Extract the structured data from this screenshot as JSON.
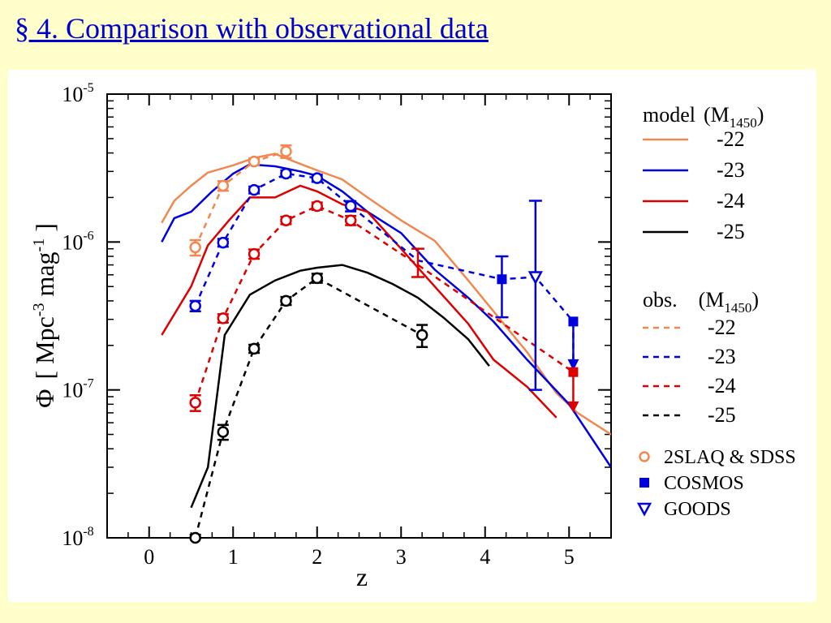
{
  "slide": {
    "title": "§ 4. Comparison with observational data",
    "title_color": "#0000CC",
    "background": "#FFFFCC"
  },
  "chart_data": {
    "type": "line",
    "xlabel": "z",
    "ylabel_parts": {
      "phi": "Φ",
      "open": "[ Mpc",
      "e1": "-3",
      "mid": " mag",
      "e2": "-1",
      "close": " ]"
    },
    "xlim": [
      -0.5,
      5.5
    ],
    "ylim": [
      1e-08,
      1e-05
    ],
    "yscale": "log",
    "xticks": [
      0,
      1,
      2,
      3,
      4,
      5
    ],
    "xtick_labels": [
      "0",
      "1",
      "2",
      "3",
      "4",
      "5"
    ],
    "yticks": [
      {
        "value": 1e-08,
        "base": "10",
        "exp": "-8"
      },
      {
        "value": 1e-07,
        "base": "10",
        "exp": "-7"
      },
      {
        "value": 1e-06,
        "base": "10",
        "exp": "-6"
      },
      {
        "value": 1e-05,
        "base": "10",
        "exp": "-5"
      }
    ],
    "legend_model": {
      "heading": "model",
      "paren_open": "(M",
      "sub": "1450",
      "paren_close": ")",
      "entries": [
        {
          "label": "-22",
          "color": "#F08850"
        },
        {
          "label": "-23",
          "color": "#0000DD"
        },
        {
          "label": "-24",
          "color": "#DD0000"
        },
        {
          "label": "-25",
          "color": "#000000"
        }
      ]
    },
    "legend_obs": {
      "heading": "obs.",
      "paren_open": "(M",
      "sub": "1450",
      "paren_close": ")",
      "entries": [
        {
          "label": "-22",
          "color": "#F08850"
        },
        {
          "label": "-23",
          "color": "#0000DD"
        },
        {
          "label": "-24",
          "color": "#DD0000"
        },
        {
          "label": "-25",
          "color": "#000000"
        }
      ]
    },
    "legend_markers": [
      {
        "label": "2SLAQ & SDSS",
        "marker": "open-circle",
        "color": "#F08850"
      },
      {
        "label": "COSMOS",
        "marker": "filled-square",
        "color": "#0000DD"
      },
      {
        "label": "GOODS",
        "marker": "open-triangle-down",
        "color": "#0000DD"
      }
    ],
    "model_series": [
      {
        "name": "-22",
        "color": "#F08850",
        "points": [
          [
            0.15,
            1.35e-06
          ],
          [
            0.3,
            1.9e-06
          ],
          [
            0.5,
            2.4e-06
          ],
          [
            0.7,
            2.95e-06
          ],
          [
            1.0,
            3.3e-06
          ],
          [
            1.25,
            3.7e-06
          ],
          [
            1.5,
            3.95e-06
          ],
          [
            1.7,
            3.55e-06
          ],
          [
            2.0,
            3.05e-06
          ],
          [
            2.3,
            2.65e-06
          ],
          [
            2.6,
            2e-06
          ],
          [
            3.0,
            1.4e-06
          ],
          [
            3.4,
            1.02e-06
          ],
          [
            3.8,
            5.5e-07
          ],
          [
            4.2,
            2.9e-07
          ],
          [
            4.5,
            1.8e-07
          ],
          [
            4.85,
            9.5e-08
          ],
          [
            5.1,
            7e-08
          ],
          [
            5.5,
            5e-08
          ]
        ]
      },
      {
        "name": "-23",
        "color": "#0000DD",
        "points": [
          [
            0.15,
            1e-06
          ],
          [
            0.3,
            1.45e-06
          ],
          [
            0.5,
            1.6e-06
          ],
          [
            0.75,
            2.2e-06
          ],
          [
            1.0,
            2.9e-06
          ],
          [
            1.2,
            3.35e-06
          ],
          [
            1.5,
            3.25e-06
          ],
          [
            1.8,
            3e-06
          ],
          [
            2.0,
            2.8e-06
          ],
          [
            2.3,
            2.2e-06
          ],
          [
            2.6,
            1.6e-06
          ],
          [
            3.0,
            1.15e-06
          ],
          [
            3.4,
            6.5e-07
          ],
          [
            3.8,
            4.2e-07
          ],
          [
            4.1,
            2.9e-07
          ],
          [
            4.5,
            1.6e-07
          ],
          [
            5.0,
            8e-08
          ],
          [
            5.5,
            3e-08
          ]
        ]
      },
      {
        "name": "-24",
        "color": "#DD0000",
        "points": [
          [
            0.15,
            2.35e-07
          ],
          [
            0.5,
            5e-07
          ],
          [
            0.7,
            9.5e-07
          ],
          [
            0.95,
            1.4e-06
          ],
          [
            1.2,
            2e-06
          ],
          [
            1.5,
            2e-06
          ],
          [
            1.8,
            2.4e-06
          ],
          [
            2.0,
            2.2e-06
          ],
          [
            2.3,
            1.8e-06
          ],
          [
            2.6,
            1.6e-06
          ],
          [
            3.0,
            9e-07
          ],
          [
            3.4,
            5e-07
          ],
          [
            3.8,
            2.8e-07
          ],
          [
            4.1,
            1.6e-07
          ],
          [
            4.5,
            1.05e-07
          ],
          [
            4.85,
            6.5e-08
          ]
        ]
      },
      {
        "name": "-25",
        "color": "#000000",
        "points": [
          [
            0.5,
            1.6e-08
          ],
          [
            0.7,
            3e-08
          ],
          [
            0.9,
            2.35e-07
          ],
          [
            1.2,
            4.4e-07
          ],
          [
            1.5,
            5.5e-07
          ],
          [
            1.8,
            6.4e-07
          ],
          [
            2.0,
            6.7e-07
          ],
          [
            2.3,
            7e-07
          ],
          [
            2.6,
            6.2e-07
          ],
          [
            2.9,
            5.2e-07
          ],
          [
            3.2,
            4.2e-07
          ],
          [
            3.5,
            3.1e-07
          ],
          [
            3.8,
            2.2e-07
          ],
          [
            4.05,
            1.45e-07
          ]
        ]
      }
    ],
    "obs_series": [
      {
        "name": "-22",
        "color": "#F08850",
        "marker": "open-circle",
        "points": [
          [
            0.55,
            9.2e-07,
            1.1e-07
          ],
          [
            0.88,
            2.4e-06,
            1.8e-07
          ],
          [
            1.25,
            3.5e-06,
            1.8e-07
          ],
          [
            1.63,
            4.1e-06,
            4e-07
          ]
        ]
      },
      {
        "name": "-23",
        "color": "#0000DD",
        "marker": "open-circle",
        "points": [
          [
            0.55,
            3.7e-07,
            3e-08
          ],
          [
            0.88,
            9.9e-07,
            6e-08
          ],
          [
            1.25,
            2.25e-06,
            1.2e-07
          ],
          [
            1.63,
            2.9e-06,
            1.5e-07
          ],
          [
            2.0,
            2.7e-06,
            1.5e-07
          ],
          [
            2.4,
            1.75e-06,
            1.4e-07
          ]
        ]
      },
      {
        "name": "-24",
        "color": "#DD0000",
        "marker": "open-circle",
        "points": [
          [
            0.55,
            8.2e-08,
            1e-08
          ],
          [
            0.88,
            3.05e-07,
            2e-08
          ],
          [
            1.25,
            8.3e-07,
            6e-08
          ],
          [
            1.63,
            1.4e-06,
            8e-08
          ],
          [
            2.0,
            1.75e-06,
            1e-07
          ],
          [
            2.4,
            1.4e-06,
            1e-07
          ]
        ]
      },
      {
        "name": "-25",
        "color": "#000000",
        "marker": "open-circle",
        "points": [
          [
            0.55,
            1e-08,
            5e-10
          ],
          [
            0.88,
            5.2e-08,
            6e-09
          ],
          [
            1.25,
            1.9e-07,
            1.2e-08
          ],
          [
            1.63,
            4e-07,
            2.5e-08
          ],
          [
            2.0,
            5.7e-07,
            4e-08
          ],
          [
            3.25,
            2.35e-07,
            4e-08
          ]
        ]
      }
    ],
    "dashed_paths": [
      {
        "name": "-22",
        "color": "#F08850",
        "points": [
          [
            0.55,
            9.2e-07
          ],
          [
            0.88,
            2.4e-06
          ],
          [
            1.25,
            3.5e-06
          ],
          [
            1.63,
            4.1e-06
          ]
        ]
      },
      {
        "name": "-23",
        "color": "#0000DD",
        "points": [
          [
            0.55,
            3.7e-07
          ],
          [
            0.88,
            9.9e-07
          ],
          [
            1.25,
            2.25e-06
          ],
          [
            1.63,
            2.9e-06
          ],
          [
            2.0,
            2.7e-06
          ],
          [
            2.4,
            1.75e-06
          ],
          [
            3.2,
            7.5e-07
          ],
          [
            4.2,
            5.6e-07
          ],
          [
            4.6,
            5.8e-07
          ],
          [
            5.05,
            2.9e-07
          ],
          [
            5.05,
            1.4e-07
          ]
        ]
      },
      {
        "name": "-24",
        "color": "#DD0000",
        "points": [
          [
            0.55,
            8.2e-08
          ],
          [
            0.88,
            3.05e-07
          ],
          [
            1.25,
            8.3e-07
          ],
          [
            1.63,
            1.4e-06
          ],
          [
            2.0,
            1.75e-06
          ],
          [
            2.4,
            1.4e-06
          ],
          [
            3.2,
            7e-07
          ],
          [
            5.05,
            1.32e-07
          ]
        ]
      },
      {
        "name": "-25",
        "color": "#000000",
        "points": [
          [
            0.55,
            1e-08
          ],
          [
            0.88,
            5.2e-08
          ],
          [
            1.25,
            1.9e-07
          ],
          [
            1.63,
            4e-07
          ],
          [
            2.0,
            5.7e-07
          ],
          [
            3.25,
            2.35e-07
          ]
        ]
      }
    ],
    "other_points": [
      {
        "kind": "errorbar",
        "color": "#DD0000",
        "x": 3.2,
        "y": 7e-07,
        "lo": 5.8e-07,
        "hi": 9e-07
      },
      {
        "kind": "filled-square",
        "color": "#0000DD",
        "x": 4.2,
        "y": 5.6e-07,
        "lo": 3.1e-07,
        "hi": 8e-07
      },
      {
        "kind": "open-triangle-down",
        "color": "#0000DD",
        "x": 4.6,
        "y": 5.8e-07,
        "lo": 1e-07,
        "hi": 1.9e-06
      },
      {
        "kind": "filled-square-upper-limit",
        "color": "#0000DD",
        "x": 5.05,
        "y": 2.9e-07,
        "arrow_to": 1.35e-07
      },
      {
        "kind": "filled-square-upper-limit",
        "color": "#DD0000",
        "x": 5.05,
        "y": 1.32e-07,
        "arrow_to": 7e-08
      }
    ]
  }
}
